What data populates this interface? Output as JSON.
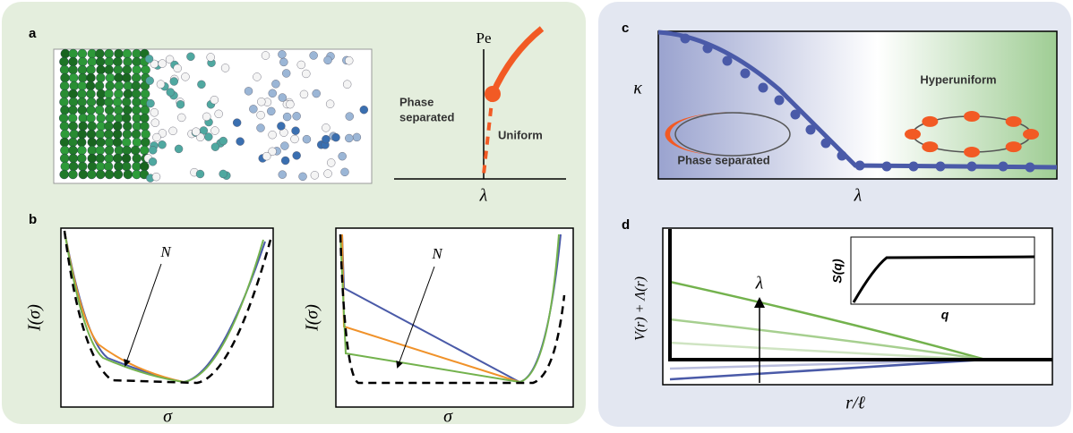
{
  "panels": {
    "a": {
      "label": "a",
      "phase_diagram": {
        "y_label": "Pe",
        "x_label": "λ",
        "left_region": [
          "Phase",
          "separated"
        ],
        "right_region": "Uniform"
      }
    },
    "b": {
      "label": "b",
      "plots": [
        {
          "y_label": "I(σ)",
          "x_label": "σ",
          "annotation": "N"
        },
        {
          "y_label": "I(σ)",
          "x_label": "σ",
          "annotation": "N"
        }
      ]
    },
    "c": {
      "label": "c",
      "y_label": "κ",
      "x_label": "λ",
      "right_region": "Hyperuniform",
      "left_region": "Phase separated"
    },
    "d": {
      "label": "d",
      "y_label": "V(r) + Λ(r)",
      "x_label": "r/ℓ",
      "arrow_label": "λ",
      "inset": {
        "y_label": "S(q)",
        "x_label": "q"
      }
    }
  }
}
